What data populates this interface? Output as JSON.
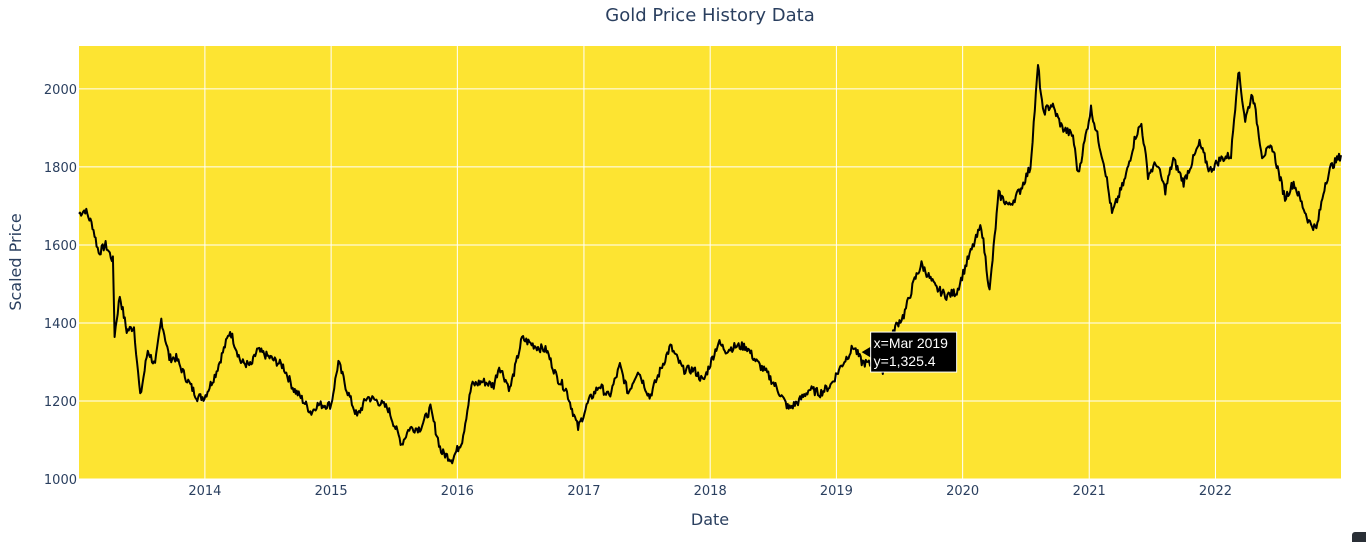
{
  "chart_data": {
    "type": "line",
    "title": "Gold Price History Data",
    "xlabel": "Date",
    "ylabel": "Scaled Price",
    "xlim": [
      "2013-01-02",
      "2022-12-30"
    ],
    "ylim": [
      1000,
      2110
    ],
    "x_tick_labels": [
      "2014",
      "2015",
      "2016",
      "2017",
      "2018",
      "2019",
      "2020",
      "2021",
      "2022"
    ],
    "y_tick_labels": [
      "1000",
      "1200",
      "1400",
      "1600",
      "1800",
      "2000"
    ],
    "grid": true,
    "legend": "none",
    "background_color": "#fde432",
    "line_color": "#000000",
    "series": [
      {
        "x": [
          "2013-01-02",
          "2013-01-20",
          "2013-02-10",
          "2013-02-28",
          "2013-03-20",
          "2013-04-10",
          "2013-04-15",
          "2013-04-30",
          "2013-05-20",
          "2013-06-10",
          "2013-06-28",
          "2013-07-20",
          "2013-08-10",
          "2013-08-28",
          "2013-09-20",
          "2013-10-10",
          "2013-11-01",
          "2013-11-20",
          "2013-12-10",
          "2013-12-31",
          "2014-02-01",
          "2014-03-15",
          "2014-04-15",
          "2014-05-15",
          "2014-06-01",
          "2014-07-10",
          "2014-08-15",
          "2014-09-15",
          "2014-10-05",
          "2014-11-05",
          "2014-11-20",
          "2015-01-01",
          "2015-01-22",
          "2015-02-15",
          "2015-03-17",
          "2015-04-15",
          "2015-05-15",
          "2015-06-15",
          "2015-07-24",
          "2015-08-15",
          "2015-09-15",
          "2015-10-15",
          "2015-11-15",
          "2015-12-17",
          "2016-01-15",
          "2016-02-11",
          "2016-03-15",
          "2016-04-15",
          "2016-05-01",
          "2016-06-01",
          "2016-07-06",
          "2016-08-15",
          "2016-09-15",
          "2016-10-15",
          "2016-11-10",
          "2016-12-15",
          "2017-01-15",
          "2017-02-15",
          "2017-03-15",
          "2017-04-15",
          "2017-05-09",
          "2017-06-06",
          "2017-07-10",
          "2017-08-15",
          "2017-09-08",
          "2017-10-15",
          "2017-11-15",
          "2017-12-12",
          "2018-01-25",
          "2018-02-15",
          "2018-03-15",
          "2018-04-15",
          "2018-05-15",
          "2018-06-15",
          "2018-07-15",
          "2018-08-16",
          "2018-09-15",
          "2018-10-15",
          "2018-11-15",
          "2018-12-15",
          "2019-01-15",
          "2019-02-20",
          "2019-03-15",
          "2019-04-23",
          "2019-05-15",
          "2019-06-20",
          "2019-07-15",
          "2019-08-15",
          "2019-09-04",
          "2019-10-15",
          "2019-11-15",
          "2019-12-15",
          "2020-01-15",
          "2020-02-24",
          "2020-03-19",
          "2020-04-14",
          "2020-05-15",
          "2020-06-15",
          "2020-07-15",
          "2020-08-06",
          "2020-08-20",
          "2020-09-15",
          "2020-10-15",
          "2020-11-15",
          "2020-11-30",
          "2021-01-06",
          "2021-02-15",
          "2021-03-08",
          "2021-04-15",
          "2021-05-15",
          "2021-06-01",
          "2021-06-20",
          "2021-07-15",
          "2021-08-09",
          "2021-09-01",
          "2021-10-01",
          "2021-11-16",
          "2021-12-15",
          "2022-01-15",
          "2022-02-15",
          "2022-03-08",
          "2022-03-28",
          "2022-04-18",
          "2022-05-16",
          "2022-06-15",
          "2022-07-21",
          "2022-08-15",
          "2022-09-28",
          "2022-10-20",
          "2022-11-15",
          "2022-12-01",
          "2022-12-30"
        ],
        "y": [
          1680,
          1690,
          1650,
          1580,
          1600,
          1560,
          1370,
          1470,
          1380,
          1390,
          1210,
          1330,
          1290,
          1410,
          1310,
          1310,
          1270,
          1240,
          1210,
          1210,
          1270,
          1380,
          1300,
          1290,
          1330,
          1310,
          1290,
          1230,
          1210,
          1170,
          1190,
          1190,
          1300,
          1230,
          1160,
          1210,
          1200,
          1180,
          1090,
          1130,
          1130,
          1180,
          1070,
          1050,
          1100,
          1240,
          1250,
          1240,
          1290,
          1230,
          1360,
          1340,
          1330,
          1260,
          1230,
          1130,
          1200,
          1240,
          1210,
          1290,
          1220,
          1280,
          1210,
          1290,
          1340,
          1280,
          1280,
          1250,
          1350,
          1330,
          1340,
          1340,
          1300,
          1270,
          1230,
          1180,
          1200,
          1230,
          1220,
          1240,
          1290,
          1340,
          1300,
          1290,
          1280,
          1390,
          1420,
          1510,
          1550,
          1490,
          1470,
          1480,
          1560,
          1650,
          1480,
          1730,
          1700,
          1740,
          1800,
          2060,
          1940,
          1960,
          1900,
          1880,
          1780,
          1950,
          1800,
          1680,
          1770,
          1880,
          1910,
          1780,
          1810,
          1740,
          1820,
          1760,
          1860,
          1790,
          1820,
          1830,
          2050,
          1920,
          1990,
          1830,
          1850,
          1720,
          1760,
          1660,
          1640,
          1760,
          1800,
          1830
        ]
      }
    ],
    "hover": {
      "x_text": "x=Mar 2019",
      "y_text": "y=1,325.4",
      "x": "2019-03-15",
      "y": 1325.4
    }
  }
}
